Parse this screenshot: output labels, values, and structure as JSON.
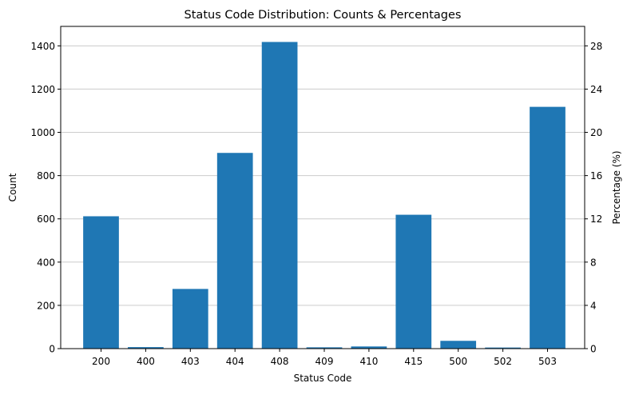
{
  "chart_data": {
    "type": "bar",
    "title": "Status Code Distribution: Counts & Percentages",
    "xlabel": "Status Code",
    "ylabel": "Count",
    "y2label": "Percentage (%)",
    "categories": [
      "200",
      "400",
      "403",
      "404",
      "408",
      "409",
      "410",
      "415",
      "500",
      "502",
      "503"
    ],
    "values": [
      612,
      7,
      276,
      905,
      1418,
      6,
      10,
      619,
      36,
      5,
      1118
    ],
    "ylim": [
      0,
      1490
    ],
    "yticks": [
      0,
      200,
      400,
      600,
      800,
      1000,
      1200,
      1400
    ],
    "y2lim": [
      0,
      29.8
    ],
    "y2ticks": [
      0,
      4,
      8,
      12,
      16,
      20,
      24,
      28
    ],
    "grid": "horizontal",
    "bar_color": "#1f77b4"
  }
}
